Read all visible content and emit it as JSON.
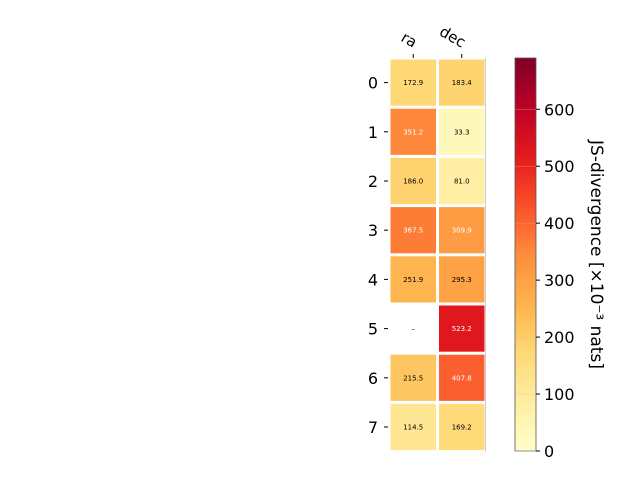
{
  "chart_data": {
    "type": "heatmap",
    "columns": [
      "ra",
      "dec"
    ],
    "rows": [
      "0",
      "1",
      "2",
      "3",
      "4",
      "5",
      "6",
      "7"
    ],
    "values": [
      [
        172.9,
        183.4
      ],
      [
        351.2,
        33.3
      ],
      [
        186.0,
        81.0
      ],
      [
        367.5,
        309.9
      ],
      [
        251.9,
        295.3
      ],
      [
        null,
        523.2
      ],
      [
        215.5,
        407.8
      ],
      [
        114.5,
        169.2
      ]
    ],
    "cell_labels": [
      [
        "172.9",
        "183.4"
      ],
      [
        "351.2",
        "33.3"
      ],
      [
        "186.0",
        "81.0"
      ],
      [
        "367.5",
        "309.9"
      ],
      [
        "251.9",
        "295.3"
      ],
      [
        "–",
        "523.2"
      ],
      [
        "215.5",
        "407.8"
      ],
      [
        "114.5",
        "169.2"
      ]
    ],
    "colormap": "YlOrRd",
    "vmin": 0,
    "vmax": 690,
    "colorbar": {
      "label": "JS-divergence [×10⁻³ nats]",
      "ticks": [
        0,
        100,
        200,
        300,
        400,
        500,
        600
      ]
    }
  }
}
